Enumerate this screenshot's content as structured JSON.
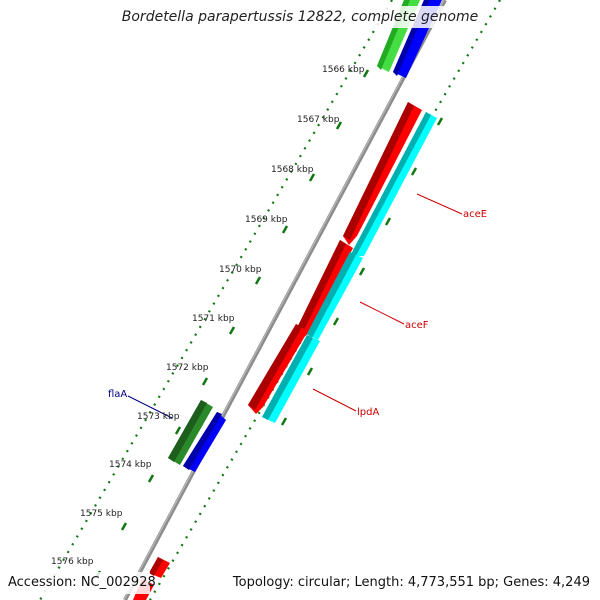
{
  "title": "Bordetella parapertussis 12822, complete genome",
  "footer": {
    "accession": "Accession: NC_002928",
    "summary": "Topology: circular; Length: 4,773,551 bp; Genes: 4,249"
  },
  "ticks": [
    {
      "label": "1566 kbp"
    },
    {
      "label": "1567 kbp"
    },
    {
      "label": "1568 kbp"
    },
    {
      "label": "1569 kbp"
    },
    {
      "label": "1570 kbp"
    },
    {
      "label": "1571 kbp"
    },
    {
      "label": "1572 kbp"
    },
    {
      "label": "1573 kbp"
    },
    {
      "label": "1574 kbp"
    },
    {
      "label": "1575 kbp"
    },
    {
      "label": "1576 kbp"
    }
  ],
  "gene_labels": [
    {
      "text": "aceE",
      "color": "#cc0000"
    },
    {
      "text": "aceF",
      "color": "#cc0000"
    },
    {
      "text": "lpdA",
      "color": "#cc0000"
    },
    {
      "text": "flaA",
      "color": "#000080"
    }
  ],
  "colors": {
    "backbone": "#8c8c8c",
    "tick_ring": "#117711",
    "gene_red": "#ff0000",
    "gene_cyan": "#00ffff",
    "gene_blue": "#0000ff",
    "gene_green": "#2a8a2a",
    "gene_lightgreen": "#44dd44"
  }
}
